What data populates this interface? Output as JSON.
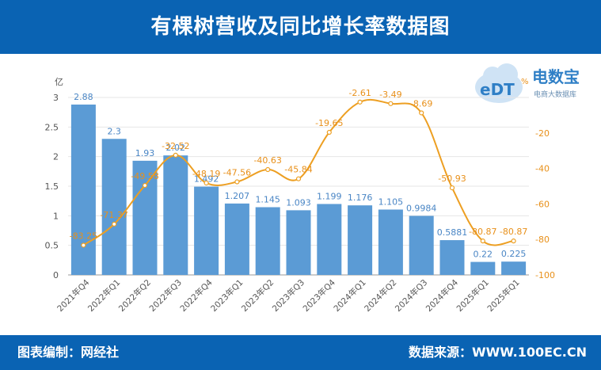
{
  "header": {
    "title": "有棵树营收及同比增长率数据图"
  },
  "footer": {
    "editor": "图表编制：网经社",
    "source": "数据来源：WWW.100EC.CN"
  },
  "logo": {
    "brand": "电数宝",
    "sub": "电商大数据库",
    "mark": "eDT",
    "percent": "%"
  },
  "colors": {
    "bar": "#5b9bd5",
    "line": "#ed9f22",
    "header": "#0a63b3",
    "bar_label": "#4a86c5",
    "line_label": "#e8901a"
  },
  "chart_data": {
    "type": "bar+line",
    "categories": [
      "2021年Q4",
      "2022年Q1",
      "2022年Q2",
      "2022年Q3",
      "2022年Q4",
      "2023年Q1",
      "2023年Q2",
      "2023年Q3",
      "2023年Q4",
      "2024年Q1",
      "2024年Q2",
      "2024年Q3",
      "2024年Q4",
      "2025年Q1",
      "2025年Q1"
    ],
    "series": [
      {
        "values": [
          2.88,
          2.3,
          1.93,
          2.02,
          1.492,
          1.207,
          1.145,
          1.093,
          1.199,
          1.176,
          1.105,
          0.9984,
          0.5881,
          0.22,
          0.225
        ],
        "labels": [
          "2.88",
          "2.3",
          "1.93",
          "2.02",
          "1.492",
          "1.207",
          "1.145",
          "1.093",
          "1.199",
          "1.176",
          "1.105",
          "0.9984",
          "0.5881",
          "0.22",
          "0.225"
        ],
        "axis": "left"
      },
      {
        "values": [
          -83.25,
          -71.37,
          -49.58,
          -32.52,
          -48.19,
          -47.56,
          -40.63,
          -45.84,
          -19.65,
          -2.61,
          -3.49,
          -8.69,
          -50.93,
          -80.87,
          -80.87
        ],
        "labels": [
          "-83.25",
          "-71.37",
          "-49.58",
          "-32.52",
          "-48.19",
          "-47.56",
          "-40.63",
          "-45.84",
          "-19.65",
          "-2.61",
          "-3.49",
          "-8.69",
          "-50.93",
          "-80.87",
          "-80.87"
        ],
        "axis": "right"
      }
    ],
    "left_axis": {
      "unit": "亿",
      "ticks": [
        "0",
        "0.5",
        "1",
        "1.5",
        "2",
        "2.5",
        "3"
      ],
      "ylim": [
        0,
        3
      ]
    },
    "right_axis": {
      "ticks": [
        "-100",
        "-80",
        "-60",
        "-40",
        "-20"
      ],
      "ylim": [
        -100,
        0
      ]
    },
    "grid": true
  }
}
